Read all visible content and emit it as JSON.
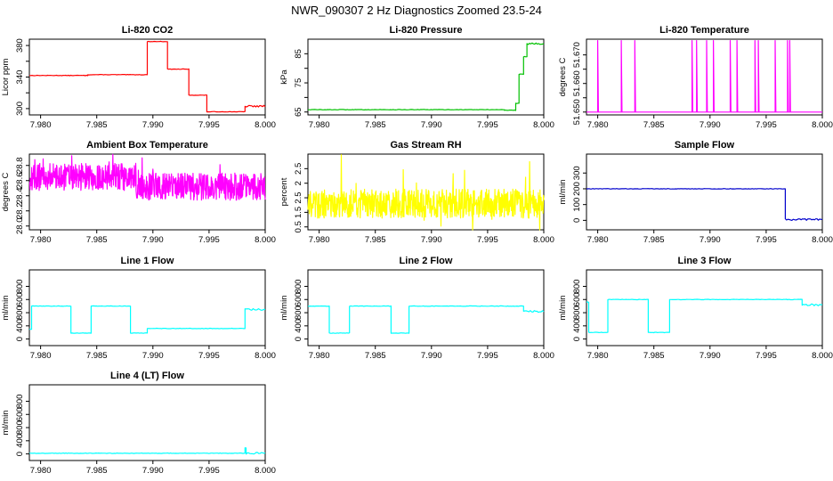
{
  "figure": {
    "title": "NWR_090307  2 Hz Diagnostics Zoomed 23.5-24"
  },
  "chart_data": [
    {
      "type": "line",
      "title": "Li-820 CO2",
      "xlabel": "",
      "ylabel": "Licor ppm",
      "color": "#ff0000",
      "x_ticks": [
        "7.980",
        "7.985",
        "7.990",
        "7.995",
        "8.000"
      ],
      "xlim": [
        7.979,
        8.0
      ],
      "ylim": [
        292,
        388
      ],
      "y_ticks": [
        300,
        320,
        340,
        360,
        380
      ],
      "y_tick_labels": [
        "300",
        "",
        "340",
        "",
        "380"
      ],
      "steps": [
        [
          7.979,
          342
        ],
        [
          7.9842,
          343
        ],
        [
          7.9895,
          385
        ],
        [
          7.9913,
          350
        ],
        [
          7.9932,
          317
        ],
        [
          7.9948,
          296
        ],
        [
          7.9982,
          303
        ]
      ]
    },
    {
      "type": "line",
      "title": "Li-820 Pressure",
      "xlabel": "",
      "ylabel": "kPa",
      "color": "#00c000",
      "x_ticks": [
        "7.980",
        "7.985",
        "7.990",
        "7.995",
        "8.000"
      ],
      "xlim": [
        7.979,
        8.0
      ],
      "ylim": [
        64,
        90
      ],
      "y_ticks": [
        65,
        70,
        75,
        80,
        85
      ],
      "y_tick_labels": [
        "65",
        "",
        "75",
        "",
        "85"
      ],
      "steps": [
        [
          7.979,
          65.8
        ],
        [
          7.9965,
          65.6
        ],
        [
          7.9975,
          68
        ],
        [
          7.9978,
          78
        ],
        [
          7.9982,
          84
        ],
        [
          7.9985,
          88.5
        ]
      ]
    },
    {
      "type": "line",
      "title": "Li-820 Temperature",
      "xlabel": "",
      "ylabel": "degrees C",
      "color": "#ff00ff",
      "x_ticks": [
        "7.980",
        "7.985",
        "7.990",
        "7.995",
        "8.000"
      ],
      "xlim": [
        7.979,
        8.0
      ],
      "ylim": [
        51.649,
        51.6755
      ],
      "y_ticks": [
        51.65,
        51.655,
        51.66,
        51.665,
        51.67
      ],
      "y_tick_labels": [
        "51.650",
        "",
        "51.660",
        "",
        "51.670"
      ],
      "baseline": 51.65,
      "spike_top": 51.675,
      "spikes": [
        7.98,
        7.9821,
        7.9833,
        7.9884,
        7.9888,
        7.9897,
        7.9903,
        7.9918,
        7.9924,
        7.994,
        7.9943,
        7.9958,
        7.9969,
        7.9971
      ]
    },
    {
      "type": "line",
      "title": "Ambient Box Temperature",
      "xlabel": "",
      "ylabel": "degrees C",
      "color": "#ff00ff",
      "x_ticks": [
        "7.980",
        "7.985",
        "7.990",
        "7.995",
        "8.000"
      ],
      "xlim": [
        7.979,
        8.0
      ],
      "ylim": [
        27.95,
        28.95
      ],
      "y_ticks": [
        28.0,
        28.2,
        28.4,
        28.6,
        28.8
      ],
      "y_tick_labels": [
        "28.0",
        "28.2",
        "28.4",
        "28.6",
        "28.8"
      ],
      "noise": {
        "segments": [
          [
            7.979,
            7.9885,
            28.65
          ],
          [
            7.9885,
            8.0,
            28.52
          ]
        ],
        "amp": 0.18,
        "spike_amp": 0.3
      }
    },
    {
      "type": "line",
      "title": "Gas Stream RH",
      "xlabel": "",
      "ylabel": "percent",
      "color": "#ffff00",
      "x_ticks": [
        "7.980",
        "7.985",
        "7.990",
        "7.995",
        "8.000"
      ],
      "xlim": [
        7.979,
        8.0
      ],
      "ylim": [
        0.4,
        3.0
      ],
      "y_ticks": [
        0.5,
        1.0,
        1.5,
        2.0,
        2.5
      ],
      "y_tick_labels": [
        "0.5",
        "1.5",
        "2.5"
      ],
      "noise": {
        "segments": [
          [
            7.979,
            8.0,
            1.3
          ]
        ],
        "amp": 0.5,
        "spike_amp": 1.5
      }
    },
    {
      "type": "line",
      "title": "Sample Flow",
      "xlabel": "",
      "ylabel": "ml/min",
      "color": "#0000cc",
      "x_ticks": [
        "7.980",
        "7.985",
        "7.990",
        "7.995",
        "8.000"
      ],
      "xlim": [
        7.979,
        8.0
      ],
      "ylim": [
        -60,
        420
      ],
      "y_ticks": [
        0,
        100,
        200,
        300
      ],
      "y_tick_labels": [
        "0",
        "100",
        "200",
        "300"
      ],
      "steps": [
        [
          7.979,
          200
        ],
        [
          7.9967,
          5
        ]
      ]
    },
    {
      "type": "line",
      "title": "Line 1 Flow",
      "xlabel": "",
      "ylabel": "ml/min",
      "color": "#00ffff",
      "x_ticks": [
        "7.980",
        "7.985",
        "7.990",
        "7.995",
        "8.000"
      ],
      "xlim": [
        7.979,
        8.0
      ],
      "ylim": [
        -100,
        1050
      ],
      "y_ticks": [
        0,
        200,
        400,
        600,
        800
      ],
      "y_tick_labels": [
        "0",
        "400",
        "800"
      ],
      "steps": [
        [
          7.979,
          150
        ],
        [
          7.9792,
          500
        ],
        [
          7.9827,
          90
        ],
        [
          7.9845,
          500
        ],
        [
          7.988,
          90
        ],
        [
          7.9895,
          160
        ],
        [
          7.9982,
          450
        ]
      ]
    },
    {
      "type": "line",
      "title": "Line 2 Flow",
      "xlabel": "",
      "ylabel": "ml/min",
      "color": "#00ffff",
      "x_ticks": [
        "7.980",
        "7.985",
        "7.990",
        "7.995",
        "8.000"
      ],
      "xlim": [
        7.979,
        8.0
      ],
      "ylim": [
        -100,
        1050
      ],
      "y_ticks": [
        0,
        200,
        400,
        600,
        800
      ],
      "y_tick_labels": [
        "0",
        "400",
        "800"
      ],
      "steps": [
        [
          7.979,
          500
        ],
        [
          7.9809,
          90
        ],
        [
          7.9827,
          500
        ],
        [
          7.9864,
          90
        ],
        [
          7.988,
          500
        ],
        [
          7.9982,
          420
        ]
      ]
    },
    {
      "type": "line",
      "title": "Line 3 Flow",
      "xlabel": "",
      "ylabel": "ml/min",
      "color": "#00ffff",
      "x_ticks": [
        "7.980",
        "7.985",
        "7.990",
        "7.995",
        "8.000"
      ],
      "xlim": [
        7.979,
        8.0
      ],
      "ylim": [
        -100,
        1050
      ],
      "y_ticks": [
        0,
        200,
        400,
        600,
        800
      ],
      "y_tick_labels": [
        "0",
        "400",
        "800"
      ],
      "steps": [
        [
          7.979,
          560
        ],
        [
          7.9792,
          100
        ],
        [
          7.9809,
          600
        ],
        [
          7.9845,
          100
        ],
        [
          7.9864,
          600
        ],
        [
          7.9982,
          520
        ]
      ]
    },
    {
      "type": "line",
      "title": "Line 4 (LT) Flow",
      "xlabel": "",
      "ylabel": "ml/min",
      "color": "#00ffff",
      "x_ticks": [
        "7.980",
        "7.985",
        "7.990",
        "7.995",
        "8.000"
      ],
      "xlim": [
        7.979,
        8.0
      ],
      "ylim": [
        -100,
        1050
      ],
      "y_ticks": [
        0,
        200,
        400,
        600,
        800
      ],
      "y_tick_labels": [
        "0",
        "400",
        "800"
      ],
      "steps": [
        [
          7.979,
          10
        ],
        [
          7.9982,
          90
        ],
        [
          7.9983,
          10
        ]
      ]
    }
  ]
}
